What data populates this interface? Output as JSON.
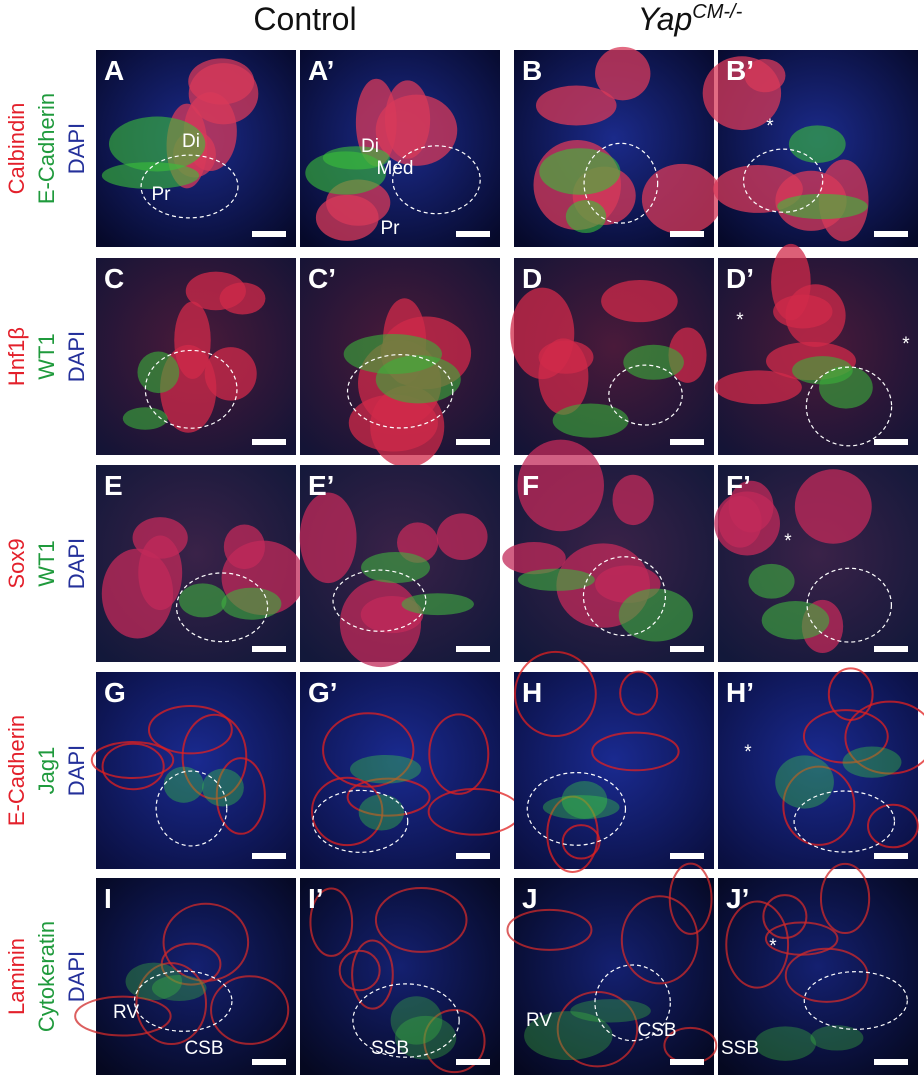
{
  "columns": [
    {
      "label": "Control"
    },
    {
      "label": "Yap",
      "superscript": "CM-/-"
    }
  ],
  "rows": [
    {
      "stains": [
        "Calbindin",
        "E-Cadherin",
        "DAPI"
      ],
      "panels": [
        {
          "label": "A",
          "annotations": [
            "Di",
            "Pr"
          ]
        },
        {
          "label": "A’",
          "annotations": [
            "Di",
            "Med",
            "Pr"
          ]
        },
        {
          "label": "B",
          "annotations": []
        },
        {
          "label": "B’",
          "annotations": [
            "*"
          ]
        }
      ]
    },
    {
      "stains": [
        "Hnf1β",
        "WT1",
        "DAPI"
      ],
      "panels": [
        {
          "label": "C",
          "annotations": []
        },
        {
          "label": "C’",
          "annotations": []
        },
        {
          "label": "D",
          "annotations": []
        },
        {
          "label": "D’",
          "annotations": [
            "*",
            "*"
          ]
        }
      ]
    },
    {
      "stains": [
        "Sox9",
        "WT1",
        "DAPI"
      ],
      "panels": [
        {
          "label": "E",
          "annotations": []
        },
        {
          "label": "E’",
          "annotations": []
        },
        {
          "label": "F",
          "annotations": []
        },
        {
          "label": "F’",
          "annotations": [
            "*"
          ]
        }
      ]
    },
    {
      "stains": [
        "E-Cadherin",
        "Jag1",
        "DAPI"
      ],
      "panels": [
        {
          "label": "G",
          "annotations": []
        },
        {
          "label": "G’",
          "annotations": []
        },
        {
          "label": "H",
          "annotations": []
        },
        {
          "label": "H’",
          "annotations": [
            "*"
          ]
        }
      ]
    },
    {
      "stains": [
        "Laminin",
        "Cytokeratin",
        "DAPI"
      ],
      "panels": [
        {
          "label": "I",
          "annotations": [
            "RV",
            "CSB"
          ]
        },
        {
          "label": "I’",
          "annotations": [
            "SSB"
          ]
        },
        {
          "label": "J",
          "annotations": [
            "RV",
            "CSB"
          ]
        },
        {
          "label": "J’",
          "annotations": [
            "*",
            "SSB"
          ]
        }
      ]
    }
  ]
}
